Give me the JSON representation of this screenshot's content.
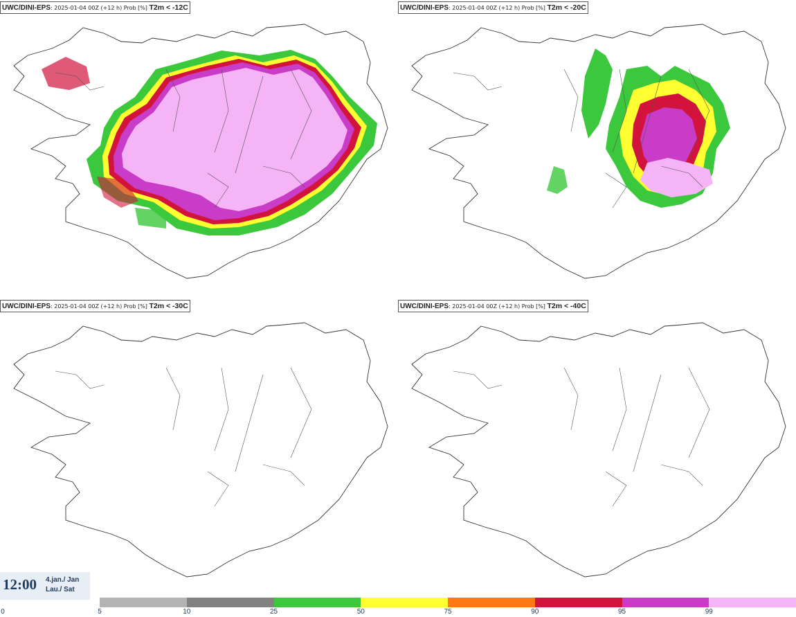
{
  "panels": [
    {
      "source": "UWC/DINI-EPS",
      "run": ": 2025-01-04 00Z (+12 h) Prob [%] ",
      "variable": "T2m < -12C"
    },
    {
      "source": "UWC/DINI-EPS",
      "run": ": 2025-01-04 00Z (+12 h) Prob [%] ",
      "variable": "T2m < -20C"
    },
    {
      "source": "UWC/DINI-EPS",
      "run": ": 2025-01-04 00Z (+12 h) Prob [%] ",
      "variable": "T2m < -30C"
    },
    {
      "source": "UWC/DINI-EPS",
      "run": ": 2025-01-04 00Z (+12 h) Prob [%] ",
      "variable": "T2m < -40C"
    }
  ],
  "time": {
    "clock": "12:00",
    "date_line1": "4.jan./ Jan",
    "date_line2": "Lau./ Sat"
  },
  "colorbar": {
    "ticks": [
      "0",
      "5",
      "10",
      "25",
      "50",
      "75",
      "90",
      "95",
      "99"
    ],
    "colors": [
      "#b4b4b4",
      "#828282",
      "#3cc83c",
      "#ffff32",
      "#ff7814",
      "#d2143c",
      "#c83cc8",
      "#f5b4f5"
    ]
  }
}
